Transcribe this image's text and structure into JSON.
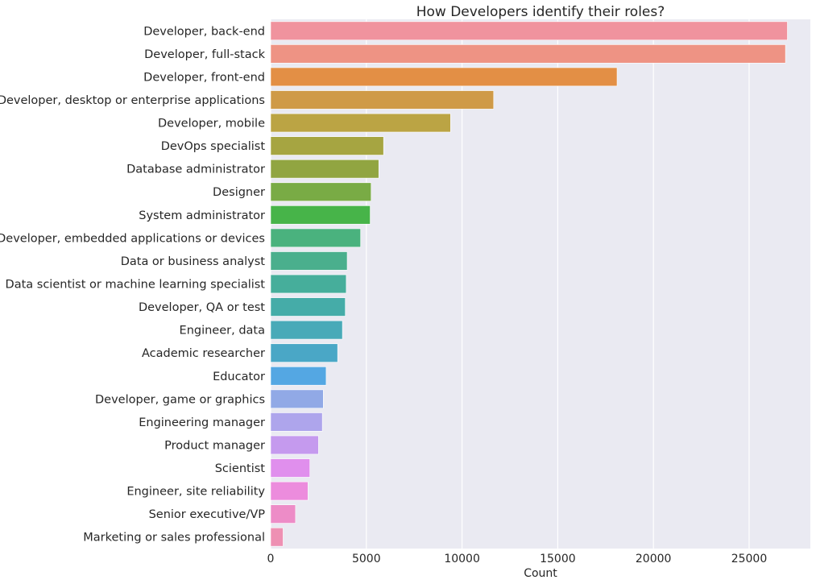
{
  "chart_data": {
    "type": "bar",
    "orientation": "horizontal",
    "title": "How Developers identify their roles?",
    "xlabel": "Count",
    "ylabel": "",
    "xlim": [
      0,
      28200
    ],
    "xticks": [
      0,
      5000,
      10000,
      15000,
      20000,
      25000
    ],
    "grid": true,
    "categories": [
      "Developer, back-end",
      "Developer, full-stack",
      "Developer, front-end",
      "Developer, desktop or enterprise applications",
      "Developer, mobile",
      "DevOps specialist",
      "Database administrator",
      "Designer",
      "System administrator",
      "Developer, embedded applications or devices",
      "Data or business analyst",
      "Data scientist or machine learning specialist",
      "Developer, QA or test",
      "Engineer, data",
      "Academic researcher",
      "Educator",
      "Developer, game or graphics",
      "Engineering manager",
      "Product manager",
      "Scientist",
      "Engineer, site reliability",
      "Senior executive/VP",
      "Marketing or sales professional"
    ],
    "values": [
      27000,
      26900,
      18100,
      11650,
      9400,
      5900,
      5650,
      5250,
      5200,
      4700,
      4000,
      3950,
      3900,
      3750,
      3500,
      2900,
      2750,
      2700,
      2500,
      2050,
      1950,
      1300,
      650
    ],
    "colors": [
      "#f0939e",
      "#ee9384",
      "#e38f45",
      "#cf9a47",
      "#bba444",
      "#a6a541",
      "#91a541",
      "#79ab45",
      "#47b449",
      "#4ab27e",
      "#4aaf8d",
      "#46ae9b",
      "#45aca8",
      "#48aab8",
      "#4aa7c6",
      "#54a7e3",
      "#91a9e6",
      "#aea5ec",
      "#c59aee",
      "#e08fed",
      "#ec8cdd",
      "#ed8cc7",
      "#ee90b3"
    ]
  }
}
